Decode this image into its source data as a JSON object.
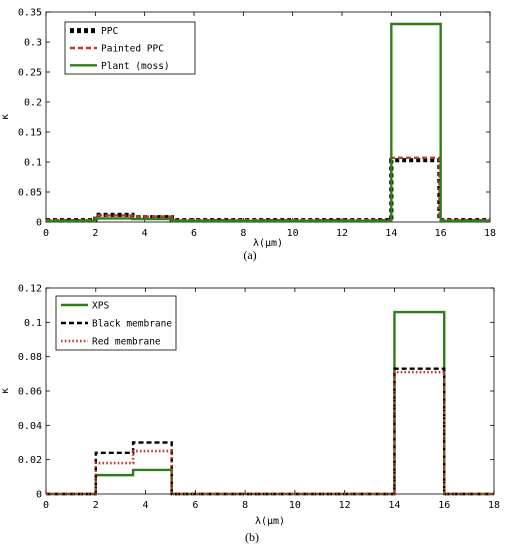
{
  "chart_data": [
    {
      "type": "line",
      "panel_label": "(a)",
      "xlabel": "λ(μm)",
      "ylabel": "κ",
      "xlim": [
        0,
        18
      ],
      "ylim": [
        0,
        0.35
      ],
      "xticks": [
        "0",
        "2",
        "4",
        "6",
        "8",
        "10",
        "12",
        "14",
        "16",
        "18"
      ],
      "yticks": [
        "0",
        "0.05",
        "0.1",
        "0.15",
        "0.2",
        "0.25",
        "0.3",
        "0.35"
      ],
      "grid": false,
      "legend_position": "top-left",
      "series": [
        {
          "name": "PPC",
          "color": "#000000",
          "style": "thick-dotted",
          "points": [
            [
              0,
              0.003
            ],
            [
              2,
              0.003
            ],
            [
              2,
              0.012
            ],
            [
              3.5,
              0.012
            ],
            [
              3.5,
              0.008
            ],
            [
              5.1,
              0.008
            ],
            [
              5.1,
              0.003
            ],
            [
              14,
              0.003
            ],
            [
              14,
              0.103
            ],
            [
              15.95,
              0.103
            ],
            [
              15.95,
              0.003
            ],
            [
              18,
              0.003
            ]
          ]
        },
        {
          "name": "Painted PPC",
          "color": "#c0392b",
          "style": "dashed",
          "points": [
            [
              0,
              0.003
            ],
            [
              2,
              0.003
            ],
            [
              2,
              0.011
            ],
            [
              3.5,
              0.011
            ],
            [
              3.5,
              0.009
            ],
            [
              5.1,
              0.009
            ],
            [
              5.1,
              0.003
            ],
            [
              14,
              0.003
            ],
            [
              14,
              0.107
            ],
            [
              15.95,
              0.107
            ],
            [
              15.95,
              0.003
            ],
            [
              18,
              0.003
            ]
          ]
        },
        {
          "name": "Plant (moss)",
          "color": "#2e7d1a",
          "style": "solid",
          "points": [
            [
              0,
              0.002
            ],
            [
              2,
              0.002
            ],
            [
              2,
              0.006
            ],
            [
              3.5,
              0.006
            ],
            [
              3.5,
              0.005
            ],
            [
              5.1,
              0.005
            ],
            [
              5.1,
              0.002
            ],
            [
              14,
              0.002
            ],
            [
              14,
              0.33
            ],
            [
              16,
              0.33
            ],
            [
              16,
              0.002
            ],
            [
              18,
              0.002
            ]
          ]
        }
      ]
    },
    {
      "type": "line",
      "panel_label": "(b)",
      "xlabel": "λ(μm)",
      "ylabel": "κ",
      "xlim": [
        0,
        18
      ],
      "ylim": [
        0,
        0.12
      ],
      "xticks": [
        "0",
        "2",
        "4",
        "6",
        "8",
        "10",
        "12",
        "14",
        "16",
        "18"
      ],
      "yticks": [
        "0",
        "0.02",
        "0.04",
        "0.06",
        "0.08",
        "0.1",
        "0.12"
      ],
      "grid": false,
      "legend_position": "top-left",
      "series": [
        {
          "name": "XPS",
          "color": "#2e7d1a",
          "style": "solid",
          "points": [
            [
              0,
              0
            ],
            [
              2,
              0
            ],
            [
              2,
              0.011
            ],
            [
              3.5,
              0.011
            ],
            [
              3.5,
              0.014
            ],
            [
              5.05,
              0.014
            ],
            [
              5.05,
              0
            ],
            [
              14,
              0
            ],
            [
              14,
              0.106
            ],
            [
              16,
              0.106
            ],
            [
              16,
              0
            ],
            [
              18,
              0
            ]
          ]
        },
        {
          "name": "Black membrane",
          "color": "#000000",
          "style": "dashed",
          "points": [
            [
              0,
              0
            ],
            [
              2,
              0
            ],
            [
              2,
              0.024
            ],
            [
              3.5,
              0.024
            ],
            [
              3.5,
              0.03
            ],
            [
              5.05,
              0.03
            ],
            [
              5.05,
              0
            ],
            [
              14,
              0
            ],
            [
              14,
              0.073
            ],
            [
              16,
              0.073
            ],
            [
              16,
              0
            ],
            [
              18,
              0
            ]
          ]
        },
        {
          "name": "Red membrane",
          "color": "#c0392b",
          "style": "dotted",
          "points": [
            [
              0,
              0
            ],
            [
              2,
              0
            ],
            [
              2,
              0.018
            ],
            [
              3.5,
              0.018
            ],
            [
              3.5,
              0.025
            ],
            [
              5.05,
              0.025
            ],
            [
              5.05,
              0
            ],
            [
              14,
              0
            ],
            [
              14,
              0.071
            ],
            [
              16,
              0.071
            ],
            [
              16,
              0
            ],
            [
              18,
              0
            ]
          ]
        }
      ]
    }
  ]
}
